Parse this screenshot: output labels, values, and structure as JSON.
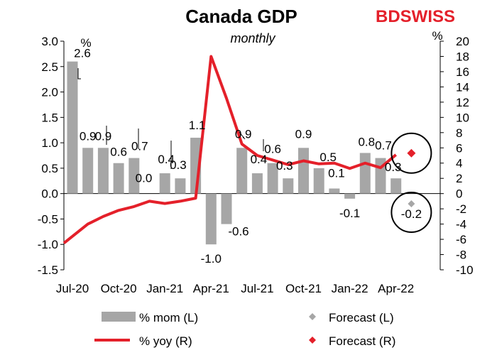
{
  "colors": {
    "bar": "#a6a6a6",
    "line": "#e4202a",
    "forecast_left": "#a6a6a6",
    "forecast_right": "#e4202a",
    "brand": "#e4202a"
  },
  "brand": {
    "part1": "BD",
    "part2": "SWISS"
  },
  "chart_data": {
    "type": "bar",
    "title": "Canada GDP",
    "subtitle": "monthly",
    "left_unit": "%",
    "right_unit": "%",
    "categories": [
      "Jul-20",
      "Aug-20",
      "Sep-20",
      "Oct-20",
      "Nov-20",
      "Dec-20",
      "Jan-21",
      "Feb-21",
      "Mar-21",
      "Apr-21",
      "May-21",
      "Jun-21",
      "Jul-21",
      "Aug-21",
      "Sep-21",
      "Oct-21",
      "Nov-21",
      "Dec-21",
      "Jan-22",
      "Feb-22",
      "Mar-22",
      "Apr-22",
      "May-22"
    ],
    "x_tick_labels": [
      "Jul-20",
      "Oct-20",
      "Jan-21",
      "Apr-21",
      "Jul-21",
      "Oct-21",
      "Jan-22",
      "Apr-22"
    ],
    "x_tick_indices": [
      0,
      3,
      6,
      9,
      12,
      15,
      18,
      21
    ],
    "y_left": {
      "min": -1.5,
      "max": 3.0,
      "ticks": [
        "3.0",
        "2.5",
        "2.0",
        "1.5",
        "1.0",
        "0.5",
        "0.0",
        "-0.5",
        "-1.0",
        "-1.5"
      ]
    },
    "y_right": {
      "min": -10,
      "max": 20,
      "ticks": [
        "20",
        "18",
        "16",
        "14",
        "12",
        "10",
        "8",
        "6",
        "4",
        "2",
        "0",
        "-2",
        "-4",
        "-6",
        "-8",
        "-10"
      ]
    },
    "series": [
      {
        "name": "% mom (L)",
        "type": "bar",
        "axis": "left",
        "values": [
          2.6,
          0.9,
          0.9,
          0.6,
          0.7,
          0.0,
          0.4,
          0.3,
          1.1,
          -1.0,
          -0.6,
          0.9,
          0.4,
          0.6,
          0.3,
          0.9,
          0.5,
          0.1,
          -0.1,
          0.8,
          0.7,
          0.3,
          null
        ]
      },
      {
        "name": "% yoy (R)",
        "type": "line",
        "axis": "right",
        "values": [
          -6.5,
          -4.0,
          -3.0,
          -2.2,
          -1.7,
          -1.0,
          -1.3,
          -1.0,
          -0.6,
          18.0,
          12.5,
          6.5,
          5.0,
          4.4,
          3.8,
          4.3,
          3.9,
          4.0,
          3.3,
          4.0,
          3.4,
          5.1,
          null
        ]
      },
      {
        "name": "Forecast (L)",
        "type": "scatter",
        "axis": "left",
        "index": 22,
        "value": -0.2
      },
      {
        "name": "Forecast (R)",
        "type": "scatter",
        "axis": "right",
        "index": 22,
        "value": 5.3
      }
    ],
    "data_labels": [
      {
        "index": 0,
        "text": "2.6"
      },
      {
        "index": 1,
        "text": "0.9"
      },
      {
        "index": 2,
        "text": "0.9"
      },
      {
        "index": 3,
        "text": "0.6"
      },
      {
        "index": 4,
        "text": "0.7"
      },
      {
        "index": 5,
        "text": "0.0"
      },
      {
        "index": 6,
        "text": "0.4"
      },
      {
        "index": 7,
        "text": "0.3"
      },
      {
        "index": 8,
        "text": "1.1"
      },
      {
        "index": 9,
        "text": "-1.0"
      },
      {
        "index": 10,
        "text": "-0.6"
      },
      {
        "index": 11,
        "text": "0.9"
      },
      {
        "index": 12,
        "text": "0.4"
      },
      {
        "index": 13,
        "text": "0.6"
      },
      {
        "index": 14,
        "text": "0.3"
      },
      {
        "index": 15,
        "text": "0.9"
      },
      {
        "index": 16,
        "text": "0.5"
      },
      {
        "index": 17,
        "text": "0.1"
      },
      {
        "index": 18,
        "text": "-0.1"
      },
      {
        "index": 19,
        "text": "0.8"
      },
      {
        "index": 20,
        "text": "0.7"
      },
      {
        "index": 21,
        "text": "0.3"
      },
      {
        "index": 22,
        "text": "-0.2"
      }
    ],
    "legend": [
      {
        "label": "% mom (L)",
        "kind": "bar"
      },
      {
        "label": "Forecast (L)",
        "kind": "diamond-gray"
      },
      {
        "label": "% yoy (R)",
        "kind": "line"
      },
      {
        "label": "Forecast (R)",
        "kind": "diamond-red"
      }
    ]
  }
}
